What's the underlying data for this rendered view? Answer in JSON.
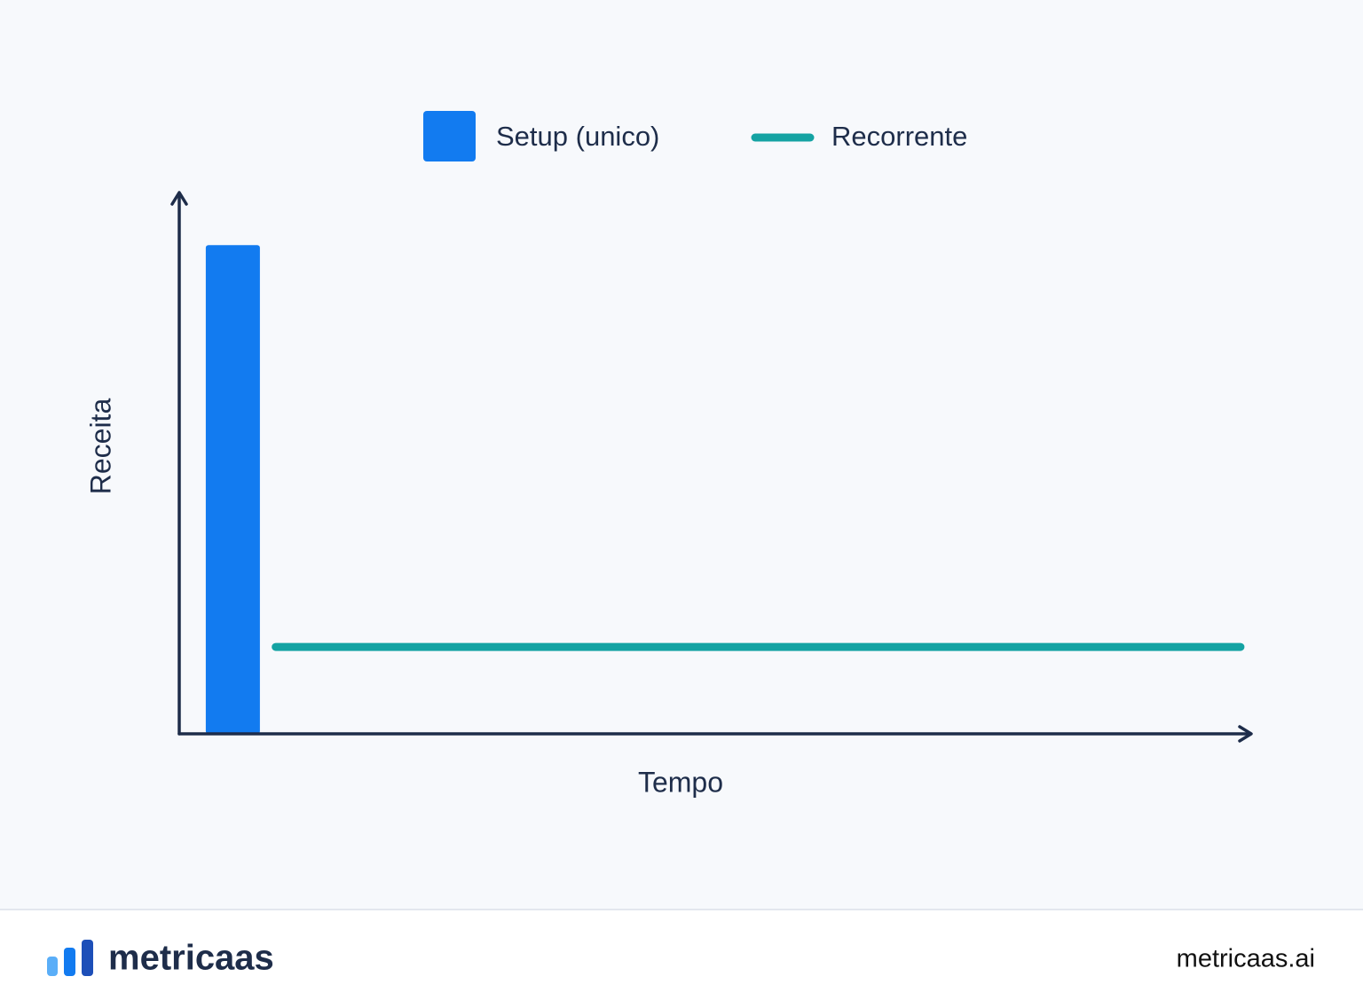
{
  "chart_data": {
    "type": "combo",
    "x_label": "Tempo",
    "y_label": "Receita",
    "xlim": [
      0,
      100
    ],
    "ylim": [
      0,
      100
    ],
    "series": [
      {
        "name": "Setup (unico)",
        "type": "bar",
        "color": "#127bf0",
        "x": [
          5
        ],
        "values": [
          90
        ]
      },
      {
        "name": "Recorrente",
        "type": "line",
        "color": "#14a3a3",
        "x": [
          9,
          99
        ],
        "values": [
          16,
          16
        ]
      }
    ]
  },
  "footer": {
    "brand": "metricaas",
    "url": "metricaas.ai"
  }
}
